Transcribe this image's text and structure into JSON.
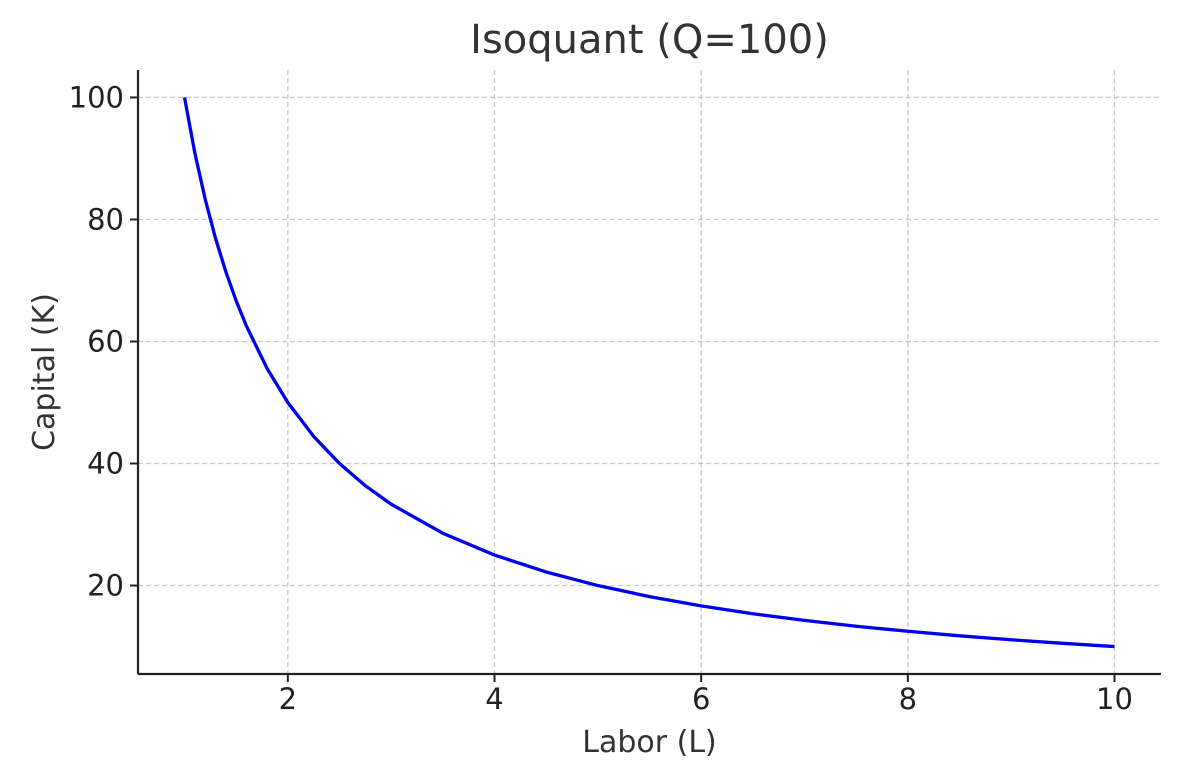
{
  "chart_data": {
    "type": "line",
    "title": "Isoquant (Q=100)",
    "xlabel": "Labor (L)",
    "ylabel": "Capital (K)",
    "xlim": [
      0.55,
      10.45
    ],
    "ylim": [
      5.5,
      104.5
    ],
    "x_ticks": [
      2,
      4,
      6,
      8,
      10
    ],
    "y_ticks": [
      20,
      40,
      60,
      80,
      100
    ],
    "grid": true,
    "series": [
      {
        "color": "#0000ee",
        "x": [
          1.0,
          1.1,
          1.2,
          1.3,
          1.4,
          1.5,
          1.6,
          1.8,
          2.0,
          2.25,
          2.5,
          2.75,
          3.0,
          3.5,
          4.0,
          4.5,
          5.0,
          5.5,
          6.0,
          6.5,
          7.0,
          7.5,
          8.0,
          8.5,
          9.0,
          9.5,
          10.0
        ],
        "y": [
          100.0,
          90.91,
          83.33,
          76.92,
          71.43,
          66.67,
          62.5,
          55.56,
          50.0,
          44.44,
          40.0,
          36.36,
          33.33,
          28.57,
          25.0,
          22.22,
          20.0,
          18.18,
          16.67,
          15.38,
          14.29,
          13.33,
          12.5,
          11.76,
          11.11,
          10.53,
          10.0
        ]
      }
    ]
  }
}
